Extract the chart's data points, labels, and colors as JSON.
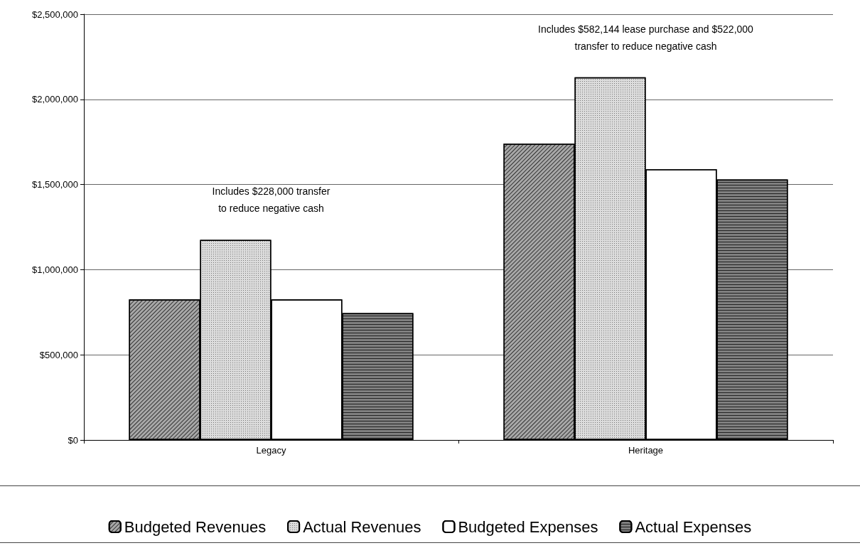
{
  "chart_data": {
    "type": "bar",
    "categories": [
      "Legacy",
      "Heritage"
    ],
    "series": [
      {
        "name": "Budgeted Revenues",
        "color": "#a8a8a8",
        "values": [
          825000,
          1740000
        ]
      },
      {
        "name": "Actual Revenues",
        "color": "#dcdcdc",
        "values": [
          1175000,
          2130000
        ]
      },
      {
        "name": "Budgeted Expenses",
        "color": "#ffffff",
        "values": [
          825000,
          1590000
        ]
      },
      {
        "name": "Actual Expenses",
        "color": "#808080",
        "values": [
          745000,
          1530000
        ]
      }
    ],
    "ylim": [
      0,
      2500000
    ],
    "yticks": [
      {
        "value": 0,
        "label": "$0"
      },
      {
        "value": 500000,
        "label": "$500,000"
      },
      {
        "value": 1000000,
        "label": "$1,000,000"
      },
      {
        "value": 1500000,
        "label": "$1,500,000"
      },
      {
        "value": 2000000,
        "label": "$2,000,000"
      },
      {
        "value": 2500000,
        "label": "$2,500,000"
      }
    ],
    "annotations": [
      "Includes $228,000 transfer\nto reduce negative cash",
      "Includes $582,144 lease purchase and $522,000\ntransfer to reduce negative cash"
    ],
    "grid": "y",
    "legend": "bottom"
  }
}
